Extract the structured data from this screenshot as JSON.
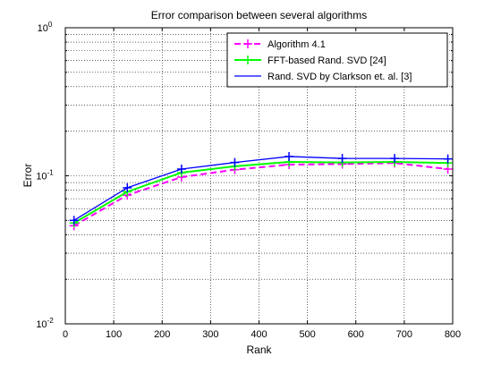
{
  "chart_data": {
    "type": "line",
    "title": "Error comparison between several algorithms",
    "xlabel": "Rank",
    "ylabel": "Error",
    "xlim": [
      0,
      800
    ],
    "ylim": [
      0.01,
      1
    ],
    "yscale": "log",
    "grid": true,
    "legend_position": "top-right",
    "x_ticks": [
      "0",
      "100",
      "200",
      "300",
      "400",
      "500",
      "600",
      "700",
      "800"
    ],
    "y_ticks": [
      {
        "base": "10",
        "exp": "-2"
      },
      {
        "base": "10",
        "exp": "-1"
      },
      {
        "base": "10",
        "exp": "0"
      }
    ],
    "x": [
      18,
      128,
      240,
      350,
      462,
      572,
      680,
      790
    ],
    "series": [
      {
        "name": "Algorithm 4.1",
        "color": "#ff00ff",
        "dash": "dashed",
        "values": [
          0.046,
          0.074,
          0.098,
          0.11,
          0.119,
          0.12,
          0.122,
          0.111
        ]
      },
      {
        "name": "FFT-based Rand. SVD [24]",
        "color": "#00ff00",
        "dash": "solid",
        "values": [
          0.048,
          0.078,
          0.105,
          0.116,
          0.124,
          0.123,
          0.124,
          0.122
        ]
      },
      {
        "name": "Rand. SVD by Clarkson et. al. [3]",
        "color": "#0000ff",
        "dash": "solid",
        "values": [
          0.05,
          0.083,
          0.111,
          0.123,
          0.135,
          0.131,
          0.131,
          0.13
        ]
      }
    ]
  }
}
